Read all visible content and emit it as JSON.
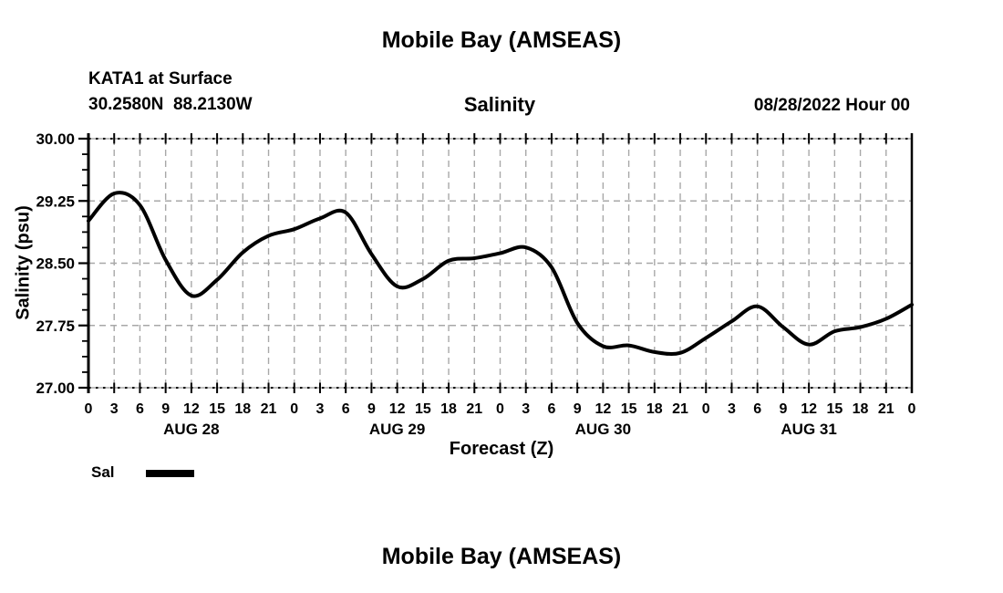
{
  "titles": {
    "top": "Mobile Bay (AMSEAS)",
    "bottom": "Mobile Bay (AMSEAS)"
  },
  "header": {
    "station": "KATA1 at Surface",
    "coordinates": "30.2580N  88.2130W",
    "variable_title": "Salinity",
    "run_datetime": "08/28/2022 Hour 00"
  },
  "axes": {
    "x_label": "Forecast (Z)",
    "y_label": "Salinity (psu)"
  },
  "legend": {
    "label": "Sal",
    "color": "#000000"
  },
  "colors": {
    "background": "#ffffff",
    "text": "#000000",
    "grid": "#a8a8a8",
    "axis": "#000000",
    "series": "#000000"
  },
  "chart_data": {
    "type": "line",
    "title": "Salinity",
    "subtitle_left": "KATA1 at Surface 30.2580N 88.2130W",
    "subtitle_right": "08/28/2022 Hour 00",
    "xlabel": "Forecast (Z)",
    "ylabel": "Salinity (psu)",
    "ylim": [
      27.0,
      30.0
    ],
    "yticks_major": [
      27.0,
      27.75,
      28.5,
      29.25,
      30.0
    ],
    "ytick_labels": [
      "27.00",
      "27.75",
      "28.50",
      "29.25",
      "30.00"
    ],
    "y_minor_step": 0.1875,
    "x_hours_range": [
      0,
      96
    ],
    "x_tick_step_hours": 3,
    "x_tick_labels": [
      "0",
      "3",
      "6",
      "9",
      "12",
      "15",
      "18",
      "21",
      "0",
      "3",
      "6",
      "9",
      "12",
      "15",
      "18",
      "21",
      "0",
      "3",
      "6",
      "9",
      "12",
      "15",
      "18",
      "21",
      "0",
      "3",
      "6",
      "9",
      "12",
      "15",
      "18",
      "21",
      "0"
    ],
    "day_labels": [
      {
        "label": "AUG 28",
        "center_hour": 12
      },
      {
        "label": "AUG 29",
        "center_hour": 36
      },
      {
        "label": "AUG 30",
        "center_hour": 60
      },
      {
        "label": "AUG 31",
        "center_hour": 84
      }
    ],
    "grid": true,
    "grid_style": "dashed",
    "legend_position": "bottom-left",
    "series": [
      {
        "name": "Sal",
        "color": "#000000",
        "x_hours": [
          0,
          3,
          6,
          9,
          12,
          15,
          18,
          21,
          24,
          27,
          30,
          33,
          36,
          39,
          42,
          45,
          48,
          51,
          54,
          57,
          60,
          63,
          66,
          69,
          72,
          75,
          78,
          81,
          84,
          87,
          90,
          93,
          96
        ],
        "values": [
          29.01,
          29.34,
          29.2,
          28.54,
          28.11,
          28.3,
          28.63,
          28.83,
          28.91,
          29.04,
          29.11,
          28.61,
          28.22,
          28.31,
          28.53,
          28.56,
          28.62,
          28.69,
          28.45,
          27.78,
          27.5,
          27.51,
          27.43,
          27.42,
          27.6,
          27.8,
          27.98,
          27.73,
          27.52,
          27.68,
          27.73,
          27.83,
          28.0
        ]
      }
    ]
  }
}
